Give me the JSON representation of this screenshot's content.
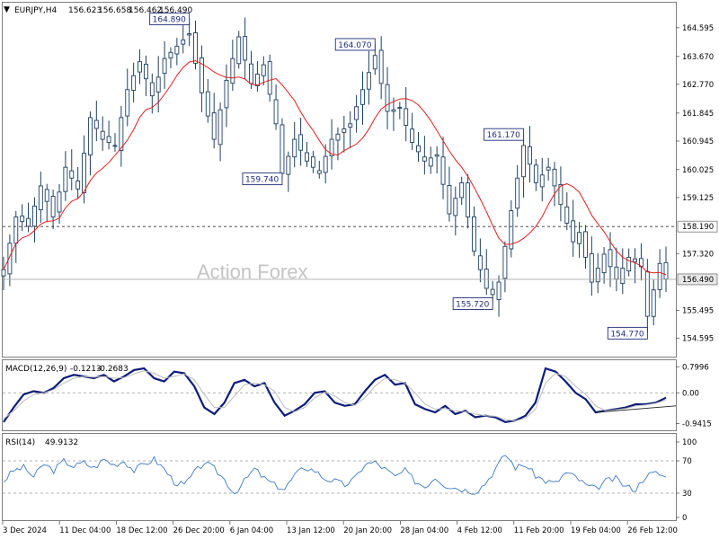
{
  "chart_data": [
    {
      "type": "candlestick",
      "header": {
        "symbol": "EURJPY,H4",
        "values": [
          "156.623",
          "156.658",
          "156.462",
          "156.490"
        ]
      },
      "watermark": "Action Forex",
      "yaxis_ticks": [
        "164.595",
        "163.670",
        "162.770",
        "161.845",
        "160.945",
        "160.025",
        "159.125",
        "157.320",
        "155.495",
        "154.595"
      ],
      "yaxis_range": [
        154.0,
        165.4
      ],
      "current_price": "156.490",
      "horizontal_line": {
        "value": 158.19,
        "label": "158.190",
        "style": "dashed"
      },
      "price_labels": [
        {
          "value": 164.89,
          "label": "164.890",
          "idx": 30
        },
        {
          "value": 164.07,
          "label": "164.070",
          "idx": 60
        },
        {
          "value": 159.74,
          "label": "159.740",
          "idx": 45
        },
        {
          "value": 161.17,
          "label": "161.170",
          "idx": 84
        },
        {
          "value": 155.72,
          "label": "155.720",
          "idx": 79
        },
        {
          "value": 154.77,
          "label": "154.770",
          "idx": 104
        }
      ],
      "close_anchors": [
        [
          0,
          156.8
        ],
        [
          2,
          158.5
        ],
        [
          4,
          158.2
        ],
        [
          6,
          159.5
        ],
        [
          8,
          158.5
        ],
        [
          10,
          160.1
        ],
        [
          12,
          159.4
        ],
        [
          14,
          161.7
        ],
        [
          16,
          161.0
        ],
        [
          18,
          160.8
        ],
        [
          20,
          162.6
        ],
        [
          22,
          163.5
        ],
        [
          24,
          162.4
        ],
        [
          26,
          163.6
        ],
        [
          28,
          164.0
        ],
        [
          30,
          164.4
        ],
        [
          32,
          162.5
        ],
        [
          34,
          161.0
        ],
        [
          36,
          162.9
        ],
        [
          38,
          164.3
        ],
        [
          40,
          162.8
        ],
        [
          42,
          163.4
        ],
        [
          44,
          161.5
        ],
        [
          45,
          159.9
        ],
        [
          47,
          161.0
        ],
        [
          49,
          160.3
        ],
        [
          51,
          159.9
        ],
        [
          53,
          161.0
        ],
        [
          56,
          161.5
        ],
        [
          58,
          162.6
        ],
        [
          60,
          163.7
        ],
        [
          62,
          161.9
        ],
        [
          64,
          162.0
        ],
        [
          66,
          160.9
        ],
        [
          68,
          160.3
        ],
        [
          70,
          160.5
        ],
        [
          72,
          158.6
        ],
        [
          74,
          159.6
        ],
        [
          76,
          157.4
        ],
        [
          78,
          156.2
        ],
        [
          79,
          156.0
        ],
        [
          80,
          156.4
        ],
        [
          82,
          158.7
        ],
        [
          84,
          160.8
        ],
        [
          86,
          159.6
        ],
        [
          88,
          160.1
        ],
        [
          90,
          158.9
        ],
        [
          92,
          157.7
        ],
        [
          93,
          158.0
        ],
        [
          95,
          156.4
        ],
        [
          97,
          157.3
        ],
        [
          99,
          156.5
        ],
        [
          101,
          157.2
        ],
        [
          103,
          156.9
        ],
        [
          104,
          155.3
        ],
        [
          106,
          157.0
        ],
        [
          107,
          156.5
        ]
      ],
      "moving_average_color": "#dd1f1f",
      "candle_color": "#1d3f60"
    },
    {
      "type": "line",
      "title": "MACD(12,26,9)",
      "values_text": [
        "-0.1213",
        "-0.2683"
      ],
      "yaxis_ticks": [
        "0.7996",
        "0.00",
        "-0.9415"
      ],
      "yaxis_range": [
        -1.15,
        1.0
      ],
      "series": [
        {
          "name": "MACD",
          "color": "#0c1c7a",
          "values": [
            -0.9,
            -0.45,
            -0.05,
            0.05,
            0.0,
            0.15,
            0.45,
            0.55,
            0.5,
            0.45,
            0.55,
            0.35,
            0.5,
            0.7,
            0.75,
            0.45,
            0.35,
            0.65,
            0.6,
            0.2,
            -0.45,
            -0.65,
            -0.3,
            0.3,
            0.4,
            0.2,
            0.3,
            -0.3,
            -0.7,
            -0.55,
            -0.35,
            0.0,
            0.05,
            -0.3,
            -0.4,
            -0.35,
            0.05,
            0.4,
            0.55,
            0.25,
            0.3,
            -0.35,
            -0.5,
            -0.6,
            -0.4,
            -0.65,
            -0.55,
            -0.75,
            -0.7,
            -0.75,
            -0.9,
            -0.85,
            -0.7,
            -0.3,
            0.75,
            0.65,
            0.35,
            0.0,
            -0.2,
            -0.6,
            -0.55,
            -0.5,
            -0.45,
            -0.35,
            -0.35,
            -0.3,
            -0.15
          ]
        },
        {
          "name": "Signal",
          "color": "#bbbbbb",
          "values": [
            -0.8,
            -0.55,
            -0.25,
            -0.05,
            0.0,
            0.1,
            0.3,
            0.45,
            0.5,
            0.48,
            0.5,
            0.45,
            0.47,
            0.58,
            0.68,
            0.6,
            0.45,
            0.5,
            0.58,
            0.4,
            -0.05,
            -0.45,
            -0.45,
            -0.1,
            0.25,
            0.3,
            0.25,
            0.05,
            -0.45,
            -0.58,
            -0.45,
            -0.15,
            0.02,
            -0.1,
            -0.3,
            -0.38,
            -0.15,
            0.2,
            0.45,
            0.4,
            0.3,
            0.0,
            -0.35,
            -0.5,
            -0.48,
            -0.55,
            -0.58,
            -0.65,
            -0.7,
            -0.72,
            -0.82,
            -0.86,
            -0.78,
            -0.5,
            0.3,
            0.6,
            0.5,
            0.2,
            -0.05,
            -0.4,
            -0.55,
            -0.52,
            -0.48,
            -0.4,
            -0.37,
            -0.32,
            -0.22
          ]
        }
      ],
      "trendline": {
        "from": [
          59,
          -0.6
        ],
        "to": [
          66,
          -0.4
        ]
      }
    },
    {
      "type": "line",
      "title": "RSI(14)",
      "values_text": [
        "49.9132"
      ],
      "yaxis_ticks": [
        "100",
        "70",
        "30",
        "0"
      ],
      "yaxis_range": [
        0,
        100
      ],
      "series": [
        {
          "name": "RSI(14)",
          "color": "#3c79c2",
          "values": [
            45,
            58,
            62,
            50,
            66,
            58,
            70,
            63,
            68,
            61,
            72,
            65,
            70,
            58,
            66,
            72,
            60,
            44,
            40,
            55,
            68,
            60,
            47,
            30,
            45,
            60,
            48,
            40,
            35,
            52,
            62,
            58,
            48,
            45,
            40,
            48,
            66,
            68,
            60,
            50,
            58,
            45,
            38,
            50,
            40,
            37,
            34,
            32,
            42,
            60,
            78,
            62,
            65,
            52,
            45,
            42,
            55,
            50,
            40,
            35,
            45,
            48,
            38,
            35,
            52,
            55,
            50
          ]
        }
      ]
    }
  ],
  "xaxis_labels": [
    "3 Dec 2024",
    "11 Dec 04:00",
    "18 Dec 12:00",
    "26 Dec 20:00",
    "6 Jan 04:00",
    "13 Jan 12:00",
    "20 Jan 20:00",
    "28 Jan 04:00",
    "4 Feb 12:00",
    "11 Feb 20:00",
    "19 Feb 04:00",
    "26 Feb 12:00"
  ]
}
